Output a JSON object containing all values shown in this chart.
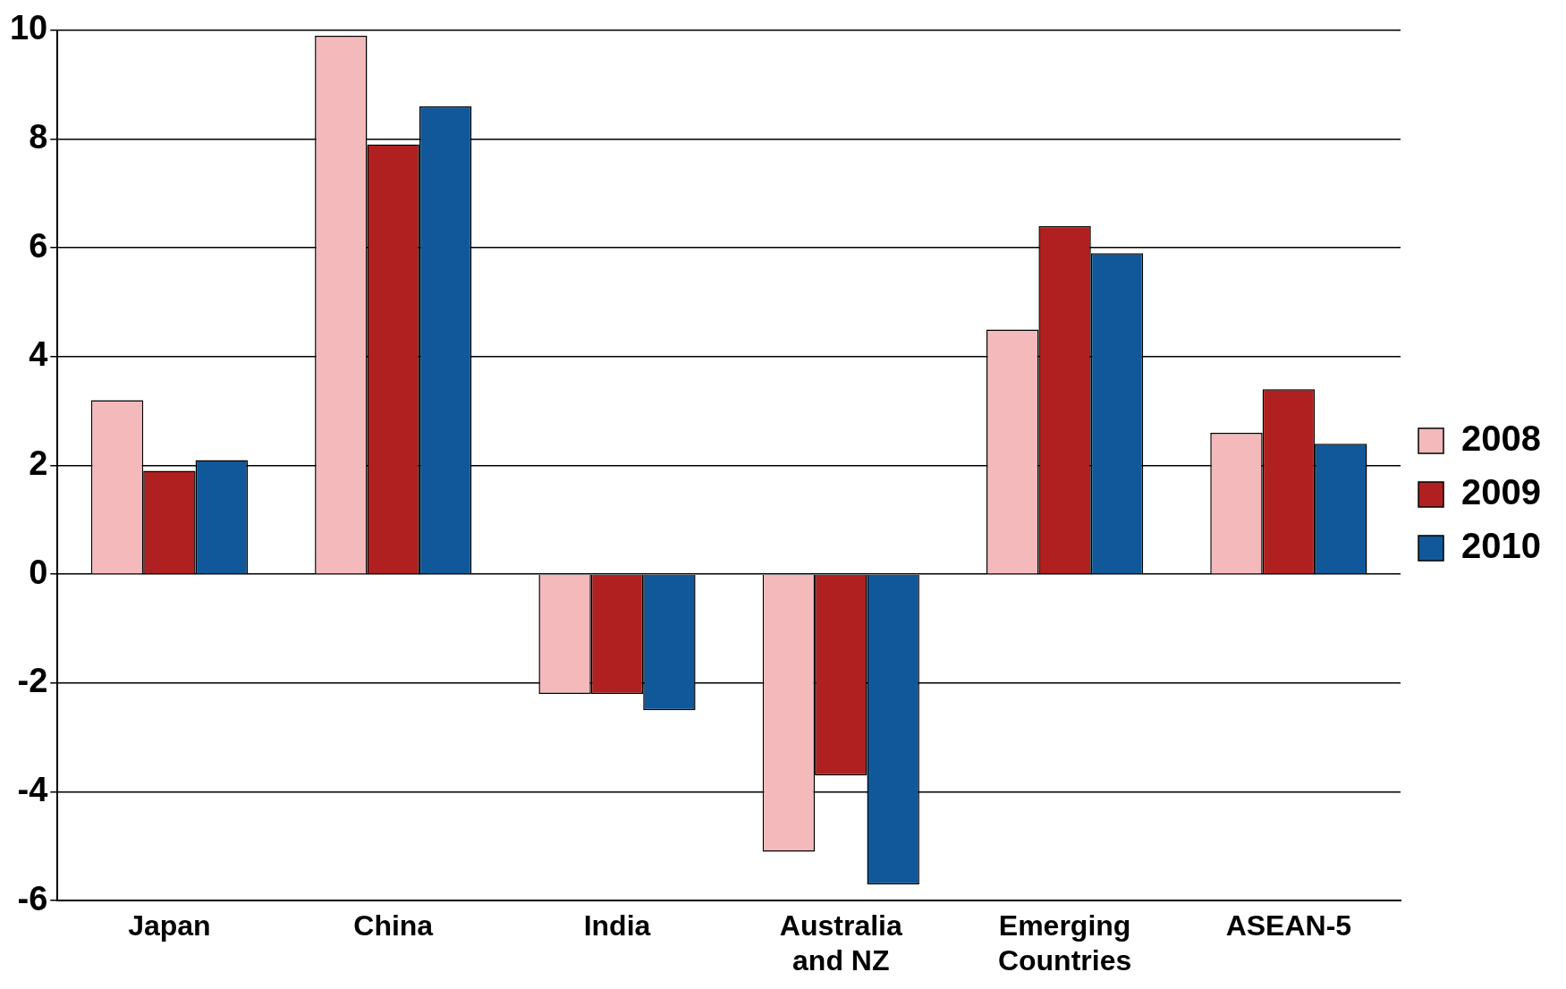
{
  "chart_data": {
    "type": "bar",
    "categories": [
      "Japan",
      "China",
      "India",
      "Australia and NZ",
      "Emerging Countries",
      "ASEAN-5"
    ],
    "series": [
      {
        "name": "2008",
        "color": "#f4babb",
        "values": [
          3.2,
          9.9,
          -2.2,
          -5.1,
          4.5,
          2.6
        ]
      },
      {
        "name": "2009",
        "color": "#b02020",
        "values": [
          1.9,
          7.9,
          -2.2,
          -3.7,
          6.4,
          3.4
        ]
      },
      {
        "name": "2010",
        "color": "#10589a",
        "values": [
          2.1,
          8.6,
          -2.5,
          -5.7,
          5.9,
          2.4
        ]
      }
    ],
    "ylim": [
      -6,
      10
    ],
    "yticks": [
      -6,
      -4,
      -2,
      0,
      2,
      4,
      6,
      8,
      10
    ],
    "grid": "y",
    "legend": "right"
  }
}
